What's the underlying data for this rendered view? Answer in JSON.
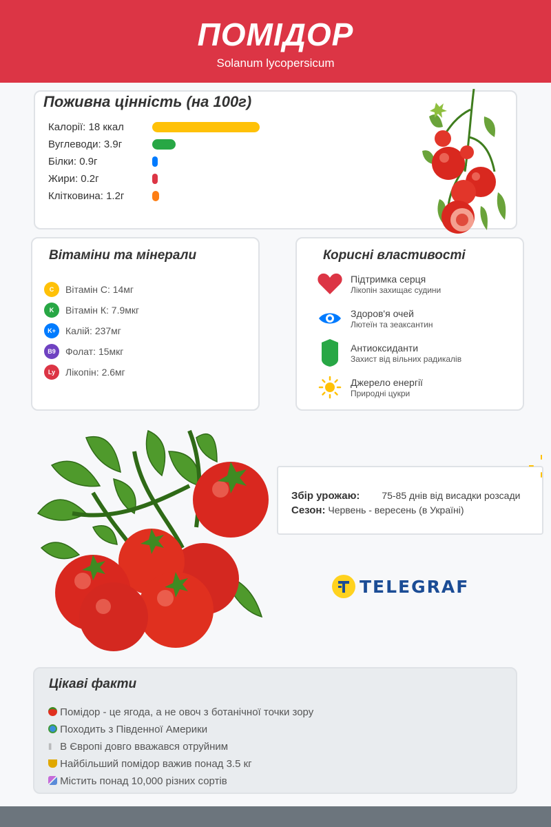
{
  "header": {
    "title": "ПОМІДОР",
    "subtitle": "Solanum lycopersicum"
  },
  "nutrition": {
    "title": "Поживна цінність (на 100г)",
    "items": [
      {
        "label": "Калорії: 18 ккал",
        "value": 18,
        "color": "#ffc107"
      },
      {
        "label": "Вуглеводи: 3.9г",
        "value": 3.9,
        "color": "#28a745"
      },
      {
        "label": "Білки: 0.9г",
        "value": 0.9,
        "color": "#007bff"
      },
      {
        "label": "Жири: 0.2г",
        "value": 0.2,
        "color": "#dc3545"
      },
      {
        "label": "Клітковина: 1.2г",
        "value": 1.2,
        "color": "#fd7e14"
      }
    ]
  },
  "vitamins": {
    "title": "Вітаміни та мінерали",
    "items": [
      {
        "badge": "C",
        "text": "Вітамін С: 14мг",
        "color": "#ffc107"
      },
      {
        "badge": "K",
        "text": "Вітамін К: 7.9мкг",
        "color": "#28a745"
      },
      {
        "badge": "K+",
        "text": "Калій: 237мг",
        "color": "#007bff"
      },
      {
        "badge": "B9",
        "text": "Фолат: 15мкг",
        "color": "#6f42c1"
      },
      {
        "badge": "Ly",
        "text": "Лікопін: 2.6мг",
        "color": "#dc3545"
      }
    ]
  },
  "benefits": {
    "title": "Корисні властивості",
    "items": [
      {
        "icon": "heart-icon",
        "title": "Підтримка серця",
        "desc": "Лікопін захищає судини"
      },
      {
        "icon": "eye-icon",
        "title": "Здоров'я очей",
        "desc": "Лютеїн та зеаксантин"
      },
      {
        "icon": "shield-icon",
        "title": "Антиоксиданти",
        "desc": "Захист від вільних радикалів"
      },
      {
        "icon": "sun-icon",
        "title": "Джерело енергії",
        "desc": "Природні цукри"
      }
    ]
  },
  "harvest": {
    "harvest_label": "Збір урожаю:",
    "harvest_value": "75-85 днів від висадки розсади",
    "season_label": "Сезон:",
    "season_value": "Червень - вересень (в Україні)"
  },
  "facts": {
    "title": "Цікаві факти",
    "items": [
      {
        "icon": "tomato-icon",
        "text": "Помідор - це ягода, а не овоч з ботанічної точки зору"
      },
      {
        "icon": "globe-icon",
        "text": "Походить з Південної Америки"
      },
      {
        "icon": "cutlery-icon",
        "text": "В Європі довго вважався отруйним"
      },
      {
        "icon": "trophy-icon",
        "text": "Найбільший помідор важив понад 3.5 кг"
      },
      {
        "icon": "dna-icon",
        "text": "Містить понад 10,000 різних сортів"
      }
    ]
  },
  "logo": {
    "text": "TELEGRAF"
  }
}
